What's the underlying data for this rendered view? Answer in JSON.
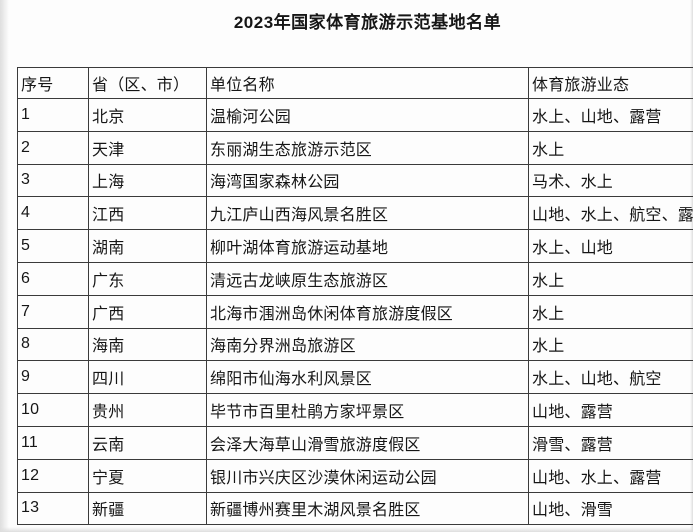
{
  "page": {
    "title": "2023年国家体育旅游示范基地名单"
  },
  "table": {
    "headers": [
      "序号",
      "省（区、市）",
      "单位名称",
      "体育旅游业态"
    ],
    "column_keys": [
      "no",
      "province",
      "unit-name",
      "business-type"
    ],
    "rows": [
      [
        "1",
        "北京",
        "温榆河公园",
        "水上、山地、露营"
      ],
      [
        "2",
        "天津",
        "东丽湖生态旅游示范区",
        "水上"
      ],
      [
        "3",
        "上海",
        "海湾国家森林公园",
        "马术、水上"
      ],
      [
        "4",
        "江西",
        "九江庐山西海风景名胜区",
        "山地、水上、航空、露营"
      ],
      [
        "5",
        "湖南",
        "柳叶湖体育旅游运动基地",
        "水上、山地"
      ],
      [
        "6",
        "广东",
        "清远古龙峡原生态旅游区",
        "水上"
      ],
      [
        "7",
        "广西",
        "北海市涠洲岛休闲体育旅游度假区",
        "水上"
      ],
      [
        "8",
        "海南",
        "海南分界洲岛旅游区",
        "水上"
      ],
      [
        "9",
        "四川",
        "绵阳市仙海水利风景区",
        "水上、山地、航空"
      ],
      [
        "10",
        "贵州",
        "毕节市百里杜鹃方家坪景区",
        "山地、露营"
      ],
      [
        "11",
        "云南",
        "会泽大海草山滑雪旅游度假区",
        "滑雪、露营"
      ],
      [
        "12",
        "宁夏",
        "银川市兴庆区沙漠休闲运动公园",
        "山地、水上、露营"
      ],
      [
        "13",
        "新疆",
        "新疆博州赛里木湖风景名胜区",
        "山地、滑雪"
      ]
    ]
  },
  "colors": {
    "background": "#fdfdfd",
    "text": "#161616",
    "table_border": "#3b3b3b",
    "page_edge_shadow": "#dedede"
  }
}
